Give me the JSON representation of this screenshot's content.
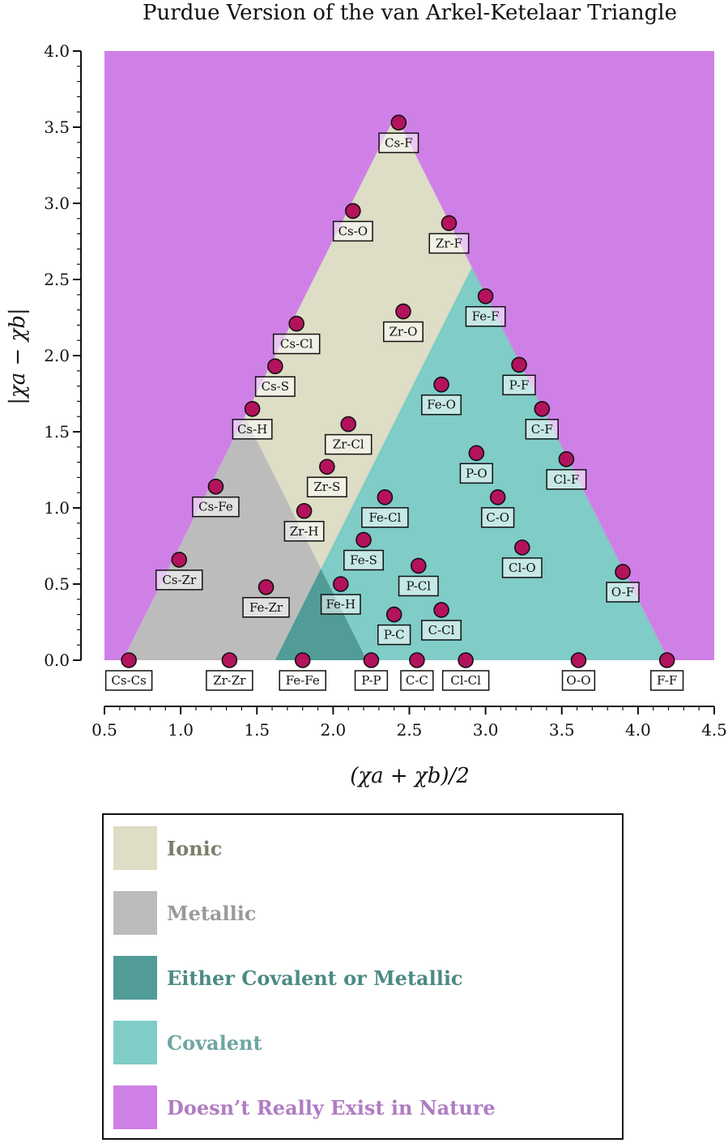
{
  "chart_data": {
    "type": "scatter",
    "title": "Purdue Version of the van Arkel-Ketelaar Triangle",
    "xlabel": "(χa + χb)/2",
    "ylabel": "|χa − χb|",
    "xlim": [
      0.5,
      4.5
    ],
    "ylim": [
      0.0,
      4.0
    ],
    "xticks": [
      "0.5",
      "1.0",
      "1.5",
      "2.0",
      "2.5",
      "3.0",
      "3.5",
      "4.0",
      "4.5"
    ],
    "yticks": [
      "0.0",
      "0.5",
      "1.0",
      "1.5",
      "2.0",
      "2.5",
      "3.0",
      "3.5",
      "4.0"
    ],
    "grid": false,
    "points": [
      {
        "label": "Cs-Cs",
        "x": 0.66,
        "y": 0.0
      },
      {
        "label": "Zr-Zr",
        "x": 1.32,
        "y": 0.0
      },
      {
        "label": "Fe-Fe",
        "x": 1.8,
        "y": 0.0
      },
      {
        "label": "P-P",
        "x": 2.25,
        "y": 0.0
      },
      {
        "label": "C-C",
        "x": 2.55,
        "y": 0.0
      },
      {
        "label": "Cl-Cl",
        "x": 2.87,
        "y": 0.0
      },
      {
        "label": "O-O",
        "x": 3.61,
        "y": 0.0
      },
      {
        "label": "F-F",
        "x": 4.19,
        "y": 0.0
      },
      {
        "label": "Cs-F",
        "x": 2.43,
        "y": 3.53
      },
      {
        "label": "Cs-O",
        "x": 2.13,
        "y": 2.95
      },
      {
        "label": "Zr-F",
        "x": 2.76,
        "y": 2.87
      },
      {
        "label": "Fe-F",
        "x": 3.0,
        "y": 2.39
      },
      {
        "label": "Zr-O",
        "x": 2.46,
        "y": 2.29
      },
      {
        "label": "Cs-Cl",
        "x": 1.76,
        "y": 2.21
      },
      {
        "label": "Cs-S",
        "x": 1.62,
        "y": 1.93
      },
      {
        "label": "P-F",
        "x": 3.22,
        "y": 1.94
      },
      {
        "label": "Fe-O",
        "x": 2.71,
        "y": 1.81
      },
      {
        "label": "Cs-H",
        "x": 1.47,
        "y": 1.65
      },
      {
        "label": "C-F",
        "x": 3.37,
        "y": 1.65
      },
      {
        "label": "Zr-Cl",
        "x": 2.1,
        "y": 1.55
      },
      {
        "label": "P-O",
        "x": 2.94,
        "y": 1.36
      },
      {
        "label": "Cl-F",
        "x": 3.53,
        "y": 1.32
      },
      {
        "label": "Zr-S",
        "x": 1.96,
        "y": 1.27
      },
      {
        "label": "Cs-Fe",
        "x": 1.23,
        "y": 1.14
      },
      {
        "label": "Fe-Cl",
        "x": 2.34,
        "y": 1.07
      },
      {
        "label": "C-O",
        "x": 3.08,
        "y": 1.07
      },
      {
        "label": "Zr-H",
        "x": 1.81,
        "y": 0.98
      },
      {
        "label": "Fe-S",
        "x": 2.2,
        "y": 0.79
      },
      {
        "label": "Cl-O",
        "x": 3.24,
        "y": 0.74
      },
      {
        "label": "Cs-Zr",
        "x": 0.99,
        "y": 0.66
      },
      {
        "label": "P-Cl",
        "x": 2.56,
        "y": 0.62
      },
      {
        "label": "O-F",
        "x": 3.9,
        "y": 0.58
      },
      {
        "label": "Fe-H",
        "x": 2.05,
        "y": 0.5
      },
      {
        "label": "Fe-Zr",
        "x": 1.56,
        "y": 0.48
      },
      {
        "label": "C-Cl",
        "x": 2.71,
        "y": 0.33
      },
      {
        "label": "P-C",
        "x": 2.4,
        "y": 0.3
      }
    ],
    "regions": [
      {
        "name": "Doesn’t Really Exist in Nature",
        "color": "#cf80e6",
        "polygon": [
          [
            0.5,
            0
          ],
          [
            4.5,
            0
          ],
          [
            4.5,
            4
          ],
          [
            0.5,
            4
          ]
        ]
      },
      {
        "name": "Ionic",
        "color": "#deddc5",
        "polygon": [
          [
            0.62,
            0
          ],
          [
            4.2,
            0
          ],
          [
            2.41,
            3.58
          ]
        ]
      },
      {
        "name": "Metallic",
        "color": "#bcbcbc",
        "polygon": [
          [
            0.62,
            0
          ],
          [
            2.22,
            0
          ],
          [
            1.42,
            1.6
          ]
        ]
      },
      {
        "name": "Covalent",
        "color": "#80ccc7",
        "polygon": [
          [
            1.62,
            0
          ],
          [
            4.2,
            0
          ],
          [
            2.91,
            2.58
          ]
        ]
      },
      {
        "name": "Either Covalent or Metallic",
        "color": "#519c97",
        "polygon": [
          [
            1.62,
            0
          ],
          [
            2.22,
            0
          ],
          [
            1.92,
            0.6
          ]
        ]
      }
    ],
    "marker_color": "#b3135c",
    "legend": [
      {
        "label": "Ionic",
        "swatch": "#deddc5",
        "text_color": "#7e7d6a"
      },
      {
        "label": "Metallic",
        "swatch": "#bcbcbc",
        "text_color": "#9a9a9a"
      },
      {
        "label": "Either Covalent or Metallic",
        "swatch": "#519c97",
        "text_color": "#4c8a85"
      },
      {
        "label": "Covalent",
        "swatch": "#80ccc7",
        "text_color": "#6fa6a2"
      },
      {
        "label": "Doesn’t Really Exist in Nature",
        "swatch": "#cf80e6",
        "text_color": "#b07cc2"
      }
    ]
  }
}
